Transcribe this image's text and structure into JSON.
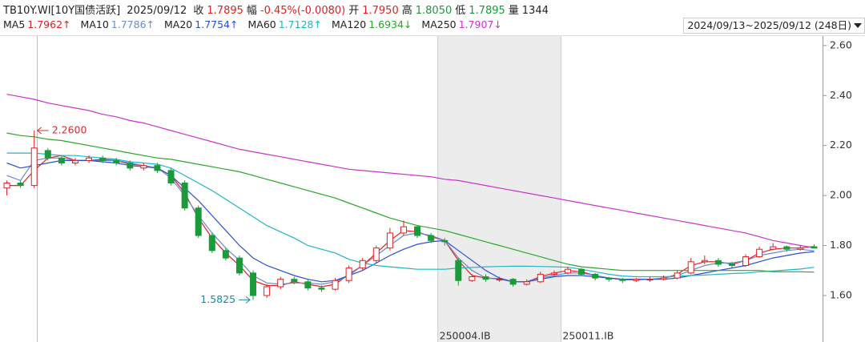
{
  "header": {
    "symbol": "TB10Y.WI[10Y国债活跃]",
    "date": "2025/09/12",
    "items": [
      {
        "label": "收",
        "value": "1.7895",
        "tone": "up"
      },
      {
        "label": "幅",
        "value": "-0.45%(-0.0080)",
        "tone": "up"
      },
      {
        "label": "开",
        "value": "1.7950",
        "tone": "up"
      },
      {
        "label": "高",
        "value": "1.8050",
        "tone": "down"
      },
      {
        "label": "低",
        "value": "1.7895",
        "tone": "down"
      },
      {
        "label": "量",
        "value": "1344",
        "tone": "plain"
      }
    ],
    "range": "2024/09/13~2025/09/12 (248日)"
  },
  "chart_data": {
    "type": "candlestick",
    "up_color": "#e02020",
    "down_color": "#1a9a3a",
    "open": [
      2.03,
      2.05,
      2.04,
      2.18,
      2.15,
      2.13,
      2.14,
      2.15,
      2.14,
      2.13,
      2.11,
      2.12,
      2.1,
      2.05,
      1.95,
      1.84,
      1.78,
      1.75,
      1.69,
      1.6,
      1.635,
      1.665,
      1.655,
      1.63,
      1.625,
      1.66,
      1.71,
      1.74,
      1.79,
      1.85,
      1.875,
      1.84,
      1.82,
      1.74,
      1.66,
      1.675,
      1.665,
      1.665,
      1.645,
      1.655,
      1.685,
      1.69,
      1.705,
      1.685,
      1.67,
      1.665,
      1.66,
      1.665,
      1.665,
      1.67,
      1.69,
      1.735,
      1.74,
      1.725,
      1.72,
      1.755,
      1.785,
      1.795,
      1.785,
      1.795
    ],
    "high": [
      2.06,
      2.06,
      2.26,
      2.19,
      2.16,
      2.15,
      2.16,
      2.16,
      2.15,
      2.14,
      2.13,
      2.13,
      2.11,
      2.06,
      1.96,
      1.85,
      1.79,
      1.76,
      1.7,
      1.645,
      1.675,
      1.675,
      1.665,
      1.64,
      1.67,
      1.72,
      1.75,
      1.8,
      1.87,
      1.9,
      1.88,
      1.85,
      1.83,
      1.75,
      1.685,
      1.685,
      1.675,
      1.67,
      1.665,
      1.695,
      1.7,
      1.715,
      1.71,
      1.69,
      1.675,
      1.67,
      1.67,
      1.675,
      1.68,
      1.7,
      1.75,
      1.76,
      1.75,
      1.735,
      1.765,
      1.795,
      1.81,
      1.8,
      1.8,
      1.805
    ],
    "low": [
      2.0,
      2.03,
      2.03,
      2.14,
      2.12,
      2.12,
      2.13,
      2.13,
      2.12,
      2.1,
      2.1,
      2.09,
      2.04,
      1.94,
      1.83,
      1.77,
      1.74,
      1.68,
      1.5825,
      1.59,
      1.625,
      1.645,
      1.62,
      1.615,
      1.62,
      1.65,
      1.7,
      1.73,
      1.78,
      1.84,
      1.83,
      1.81,
      1.8,
      1.64,
      1.655,
      1.655,
      1.655,
      1.635,
      1.64,
      1.65,
      1.68,
      1.685,
      1.68,
      1.66,
      1.655,
      1.65,
      1.655,
      1.655,
      1.66,
      1.665,
      1.685,
      1.725,
      1.715,
      1.71,
      1.715,
      1.75,
      1.78,
      1.775,
      1.78,
      1.7895
    ],
    "close": [
      2.05,
      2.04,
      2.19,
      2.15,
      2.13,
      2.14,
      2.15,
      2.14,
      2.13,
      2.11,
      2.12,
      2.1,
      2.05,
      1.95,
      1.84,
      1.78,
      1.75,
      1.69,
      1.6,
      1.635,
      1.665,
      1.655,
      1.63,
      1.625,
      1.66,
      1.71,
      1.74,
      1.79,
      1.85,
      1.875,
      1.84,
      1.82,
      1.815,
      1.66,
      1.675,
      1.665,
      1.665,
      1.645,
      1.655,
      1.685,
      1.69,
      1.705,
      1.685,
      1.67,
      1.665,
      1.66,
      1.665,
      1.665,
      1.67,
      1.69,
      1.735,
      1.74,
      1.725,
      1.72,
      1.755,
      1.785,
      1.795,
      1.785,
      1.79,
      1.7895
    ],
    "series": [
      {
        "name": "MA5",
        "color": "#e02020",
        "legend_value": "1.7962",
        "trend": "↑",
        "values": [
          2.04,
          2.04,
          2.1,
          2.15,
          2.16,
          2.14,
          2.14,
          2.145,
          2.14,
          2.125,
          2.12,
          2.11,
          2.08,
          2.01,
          1.91,
          1.83,
          1.77,
          1.72,
          1.66,
          1.64,
          1.64,
          1.655,
          1.645,
          1.635,
          1.645,
          1.685,
          1.72,
          1.77,
          1.82,
          1.86,
          1.855,
          1.835,
          1.82,
          1.74,
          1.68,
          1.67,
          1.667,
          1.655,
          1.655,
          1.675,
          1.69,
          1.7,
          1.695,
          1.68,
          1.67,
          1.663,
          1.663,
          1.665,
          1.668,
          1.685,
          1.72,
          1.735,
          1.735,
          1.725,
          1.74,
          1.77,
          1.785,
          1.79,
          1.79,
          1.7962
        ]
      },
      {
        "name": "MA10",
        "color": "#6a8cc8",
        "legend_value": "1.7786",
        "trend": "↑",
        "values": [
          2.08,
          2.06,
          2.14,
          2.15,
          2.15,
          2.14,
          2.14,
          2.14,
          2.14,
          2.13,
          2.12,
          2.11,
          2.07,
          2.0,
          1.92,
          1.85,
          1.79,
          1.74,
          1.68,
          1.65,
          1.645,
          1.65,
          1.65,
          1.645,
          1.655,
          1.68,
          1.72,
          1.76,
          1.8,
          1.84,
          1.85,
          1.84,
          1.82,
          1.75,
          1.7,
          1.67,
          1.665,
          1.655,
          1.655,
          1.67,
          1.68,
          1.69,
          1.69,
          1.68,
          1.67,
          1.665,
          1.665,
          1.665,
          1.67,
          1.68,
          1.7,
          1.72,
          1.73,
          1.73,
          1.74,
          1.76,
          1.77,
          1.78,
          1.785,
          1.7786
        ]
      },
      {
        "name": "MA20",
        "color": "#2a4fd6",
        "legend_value": "1.7754",
        "trend": "↑",
        "values": [
          2.13,
          2.11,
          2.12,
          2.13,
          2.14,
          2.14,
          2.14,
          2.135,
          2.13,
          2.12,
          2.115,
          2.11,
          2.08,
          2.03,
          1.98,
          1.92,
          1.86,
          1.8,
          1.75,
          1.72,
          1.7,
          1.68,
          1.665,
          1.655,
          1.66,
          1.68,
          1.7,
          1.73,
          1.76,
          1.785,
          1.805,
          1.815,
          1.82,
          1.78,
          1.74,
          1.7,
          1.67,
          1.655,
          1.655,
          1.665,
          1.675,
          1.68,
          1.68,
          1.675,
          1.67,
          1.665,
          1.665,
          1.665,
          1.665,
          1.67,
          1.68,
          1.69,
          1.7,
          1.71,
          1.72,
          1.735,
          1.75,
          1.76,
          1.77,
          1.7754
        ]
      },
      {
        "name": "MA60",
        "color": "#1fb6c8",
        "legend_value": "1.7128",
        "trend": "↑",
        "values": [
          2.17,
          2.17,
          2.17,
          2.165,
          2.16,
          2.16,
          2.155,
          2.15,
          2.145,
          2.135,
          2.13,
          2.125,
          2.11,
          2.08,
          2.05,
          2.02,
          1.985,
          1.95,
          1.915,
          1.88,
          1.855,
          1.83,
          1.8,
          1.785,
          1.77,
          1.745,
          1.73,
          1.72,
          1.715,
          1.71,
          1.705,
          1.705,
          1.705,
          1.71,
          1.712,
          1.715,
          1.716,
          1.717,
          1.717,
          1.716,
          1.715,
          1.713,
          1.705,
          1.695,
          1.685,
          1.678,
          1.675,
          1.675,
          1.675,
          1.677,
          1.68,
          1.682,
          1.685,
          1.688,
          1.69,
          1.695,
          1.698,
          1.702,
          1.706,
          1.7128
        ]
      },
      {
        "name": "MA120",
        "color": "#2aa82a",
        "legend_value": "1.6934",
        "trend": "↓",
        "values": [
          2.25,
          2.24,
          2.235,
          2.225,
          2.22,
          2.21,
          2.2,
          2.19,
          2.18,
          2.17,
          2.16,
          2.15,
          2.145,
          2.135,
          2.125,
          2.115,
          2.105,
          2.095,
          2.08,
          2.065,
          2.05,
          2.035,
          2.02,
          2.005,
          1.99,
          1.97,
          1.95,
          1.93,
          1.91,
          1.895,
          1.88,
          1.87,
          1.86,
          1.845,
          1.83,
          1.815,
          1.8,
          1.785,
          1.77,
          1.755,
          1.74,
          1.725,
          1.715,
          1.71,
          1.705,
          1.7,
          1.7,
          1.7,
          1.7,
          1.7,
          1.7,
          1.7,
          1.7,
          1.7,
          1.7,
          1.7,
          1.695,
          1.695,
          1.695,
          1.6934
        ]
      },
      {
        "name": "MA250",
        "color": "#cc33cc",
        "legend_value": "1.7907",
        "trend": "↓",
        "values": [
          2.405,
          2.395,
          2.385,
          2.37,
          2.36,
          2.35,
          2.34,
          2.325,
          2.315,
          2.3,
          2.29,
          2.275,
          2.26,
          2.245,
          2.23,
          2.215,
          2.2,
          2.185,
          2.175,
          2.165,
          2.155,
          2.145,
          2.135,
          2.125,
          2.115,
          2.105,
          2.1,
          2.095,
          2.09,
          2.085,
          2.08,
          2.075,
          2.065,
          2.06,
          2.05,
          2.04,
          2.03,
          2.02,
          2.01,
          2.0,
          1.99,
          1.98,
          1.97,
          1.96,
          1.95,
          1.94,
          1.93,
          1.92,
          1.91,
          1.9,
          1.89,
          1.88,
          1.87,
          1.86,
          1.85,
          1.835,
          1.82,
          1.81,
          1.8,
          1.7907
        ]
      }
    ],
    "ylim": [
      1.414,
      2.638
    ],
    "yticks": [
      {
        "value": 1.6,
        "label": "1.60"
      },
      {
        "value": 1.8,
        "label": "1.80"
      },
      {
        "value": 2.0,
        "label": "2.00"
      },
      {
        "value": 2.2,
        "label": "2.20"
      },
      {
        "value": 2.4,
        "label": "2.40"
      },
      {
        "value": 2.6,
        "label": "2.60"
      }
    ],
    "extremes": [
      {
        "label": "2.2600",
        "value": 2.26,
        "index": 2,
        "side": "right"
      },
      {
        "label": "1.5825",
        "value": 1.5825,
        "index": 18,
        "side": "left"
      }
    ],
    "contracts": [
      {
        "label": "250004.IB",
        "index": 32
      },
      {
        "label": "250011.IB",
        "index": 41
      }
    ]
  }
}
